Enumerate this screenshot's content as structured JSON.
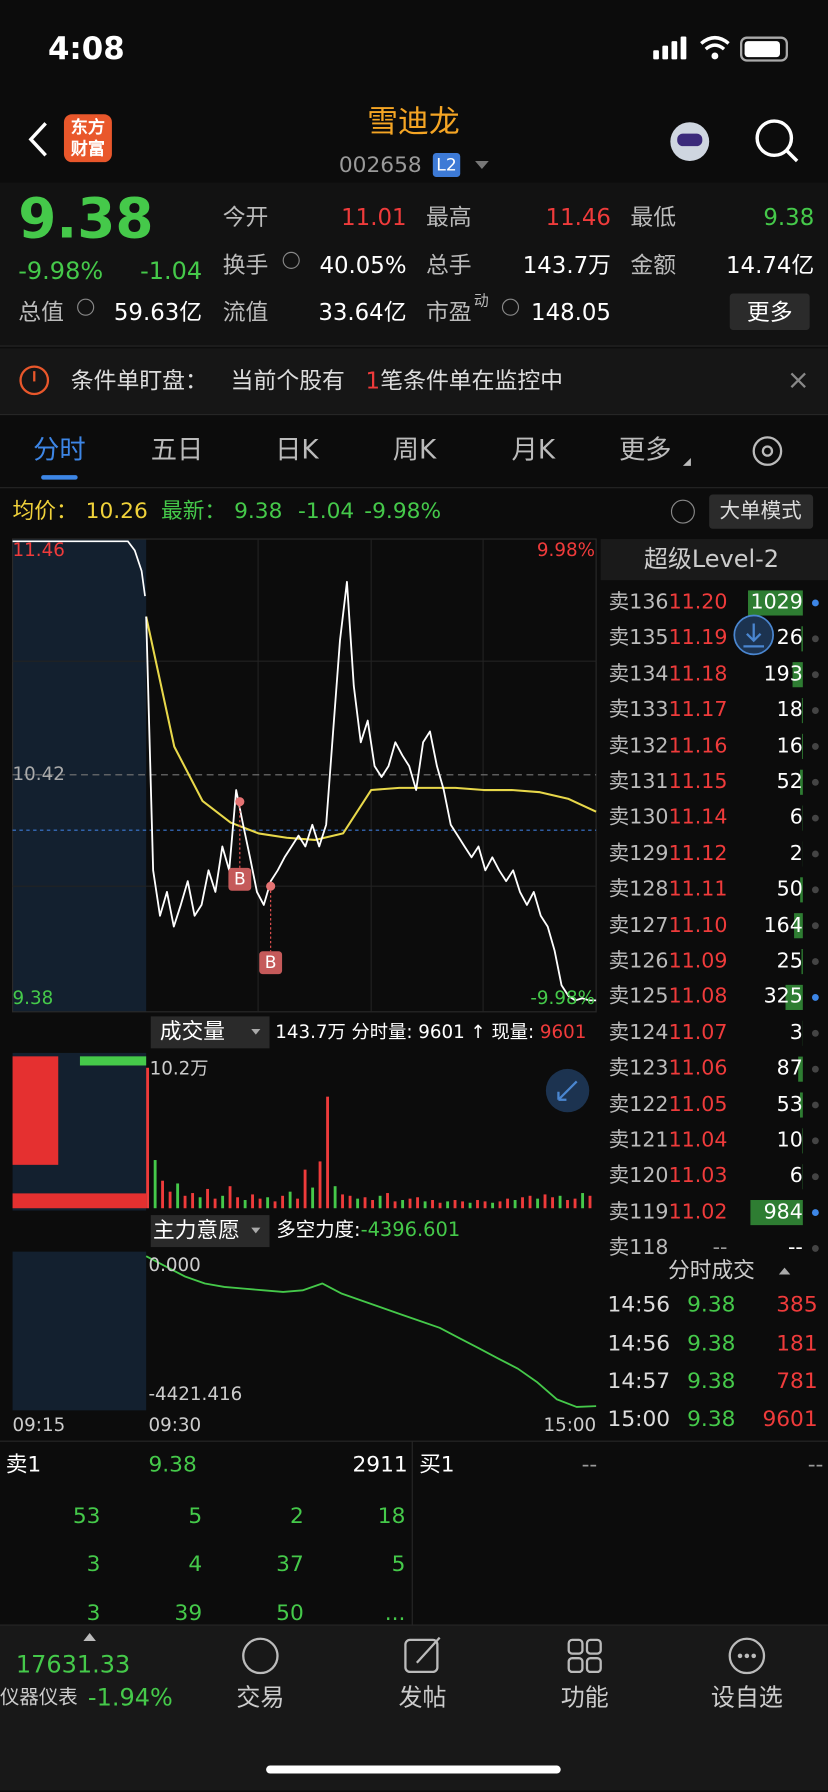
{
  "status": {
    "time": "4:08"
  },
  "header": {
    "logo": [
      "东方",
      "财富"
    ],
    "title": "雪迪龙",
    "code": "002658",
    "badge": "L2"
  },
  "quote": {
    "price": "9.38",
    "change_pct": "-9.98%",
    "change": "-1.04",
    "stats": [
      [
        {
          "label": "今开",
          "value": "11.01"
        },
        {
          "label": "最高",
          "value": "11.46"
        },
        {
          "label": "最低",
          "value": "9.38"
        }
      ],
      [
        {
          "label": "换手",
          "value": "40.05%"
        },
        {
          "label": "总手",
          "value": "143.7万"
        },
        {
          "label": "金额",
          "value": "14.74亿"
        }
      ],
      [
        {
          "label": "总值",
          "value": "59.63亿"
        },
        {
          "label": "流值",
          "value": "33.64亿"
        },
        {
          "label": "市盈",
          "sup": "动",
          "value": "148.05"
        }
      ]
    ],
    "more": "更多"
  },
  "banner": {
    "title": "条件单盯盘：",
    "text1": "当前个股有",
    "count": "1",
    "text2": "笔条件单在监控中"
  },
  "tabs": [
    "分时",
    "五日",
    "日K",
    "周K",
    "月K",
    "更多"
  ],
  "info": {
    "avg_label": "均价：",
    "avg": "10.26",
    "latest_label": "最新：",
    "latest": "9.38",
    "change": "-1.04",
    "pct": "-9.98%",
    "mode": "大单模式"
  },
  "chart": {
    "high": "11.46",
    "mid": "10.42",
    "low": "9.38",
    "up_pct": "9.98%",
    "down_pct": "-9.98%",
    "ylim": [
      9.38,
      11.46
    ],
    "price": [
      11.15,
      9.98,
      9.77,
      9.88,
      9.72,
      9.82,
      9.93,
      9.77,
      9.82,
      9.98,
      9.88,
      10.09,
      9.98,
      10.35,
      10.19,
      10.04,
      9.88,
      9.82,
      9.93,
      9.98,
      10.04,
      10.09,
      10.14,
      10.09,
      10.19,
      10.09,
      10.19,
      10.62,
      11.04,
      11.31,
      10.83,
      10.57,
      10.67,
      10.46,
      10.41,
      10.46,
      10.57,
      10.51,
      10.46,
      10.35,
      10.57,
      10.62,
      10.46,
      10.35,
      10.19,
      10.14,
      10.09,
      10.04,
      10.09,
      9.98,
      10.04,
      9.98,
      9.93,
      9.98,
      9.88,
      9.82,
      9.88,
      9.77,
      9.72,
      9.61,
      9.45,
      9.4,
      9.38,
      9.39,
      9.38,
      9.38
    ],
    "avg": [
      11.15,
      10.55,
      10.3,
      10.2,
      10.15,
      10.13,
      10.12,
      10.15,
      10.35,
      10.36,
      10.36,
      10.36,
      10.35,
      10.35,
      10.34,
      10.31,
      10.25
    ],
    "markers": [
      "B",
      "B"
    ],
    "volume_label": "成交量",
    "volume_total": "143.7万",
    "period_vol_label": "分时量:",
    "period_vol": "9601",
    "arrow": "↑",
    "cur_vol_label": "现量:",
    "cur_vol": "9601",
    "vol_max_label": "10.2万",
    "vol_ylim": [
      0,
      10.2
    ],
    "volume": [
      10.2,
      3.5,
      2.0,
      1.2,
      1.8,
      0.9,
      1.1,
      0.8,
      1.4,
      0.7,
      0.9,
      1.6,
      0.8,
      0.6,
      1.0,
      0.7,
      0.8,
      0.5,
      0.9,
      1.2,
      0.7,
      2.8,
      1.5,
      3.4,
      8.1,
      1.6,
      1.0,
      0.9,
      0.7,
      0.8,
      0.6,
      0.9,
      1.1,
      0.5,
      0.6,
      0.7,
      0.8,
      0.5,
      0.6,
      0.4,
      0.5,
      0.6,
      0.5,
      0.4,
      0.6,
      0.5,
      0.4,
      0.5,
      0.7,
      0.6,
      0.8,
      0.9,
      0.7,
      1.0,
      0.8,
      0.9,
      0.6,
      0.7,
      1.1,
      0.9
    ],
    "force_label": "主力意愿",
    "force_metric_label": "多空力度:",
    "force_metric": "-4396.601",
    "force_top": "0.000",
    "force_bottom": "-4421.416",
    "force_ylim": [
      -4421.416,
      0
    ],
    "force": [
      0,
      -300,
      -600,
      -800,
      -900,
      -950,
      -1000,
      -1050,
      -1000,
      -800,
      -1100,
      -1300,
      -1500,
      -1700,
      -1900,
      -2100,
      -2400,
      -2700,
      -3000,
      -3300,
      -3700,
      -4200,
      -4421.416,
      -4396.601
    ],
    "times": [
      "09:15",
      "09:30",
      "15:00"
    ]
  },
  "level2": {
    "title": "超级Level-2",
    "rows": [
      [
        "卖136",
        "11.20",
        "1029"
      ],
      [
        "卖135",
        "11.19",
        "26"
      ],
      [
        "卖134",
        "11.18",
        "193"
      ],
      [
        "卖133",
        "11.17",
        "18"
      ],
      [
        "卖132",
        "11.16",
        "16"
      ],
      [
        "卖131",
        "11.15",
        "52"
      ],
      [
        "卖130",
        "11.14",
        "6"
      ],
      [
        "卖129",
        "11.12",
        "2"
      ],
      [
        "卖128",
        "11.11",
        "50"
      ],
      [
        "卖127",
        "11.10",
        "164"
      ],
      [
        "卖126",
        "11.09",
        "25"
      ],
      [
        "卖125",
        "11.08",
        "325"
      ],
      [
        "卖124",
        "11.07",
        "3"
      ],
      [
        "卖123",
        "11.06",
        "87"
      ],
      [
        "卖122",
        "11.05",
        "53"
      ],
      [
        "卖121",
        "11.04",
        "10"
      ],
      [
        "卖120",
        "11.03",
        "6"
      ],
      [
        "卖119",
        "11.02",
        "984"
      ],
      [
        "卖118",
        "--",
        "--"
      ]
    ]
  },
  "ticks": {
    "title": "分时成交",
    "rows": [
      [
        "14:56",
        "9.38",
        "385"
      ],
      [
        "14:56",
        "9.38",
        "181"
      ],
      [
        "14:57",
        "9.38",
        "781"
      ],
      [
        "15:00",
        "9.38",
        "9601"
      ]
    ]
  },
  "orderbook": {
    "ask_label": "卖1",
    "ask_price": "9.38",
    "ask_vol": "2911",
    "bid_label": "买1",
    "bid_price": "--",
    "bid_vol": "--",
    "queue": [
      [
        "53",
        "5",
        "2",
        "18"
      ],
      [
        "3",
        "4",
        "37",
        "5"
      ],
      [
        "3",
        "39",
        "50",
        "..."
      ]
    ]
  },
  "tabbar": {
    "index": "17631.33",
    "sector": "仪器仪表",
    "sector_pct": "-1.94%",
    "items": [
      "交易",
      "发帖",
      "功能",
      "设自选"
    ]
  }
}
